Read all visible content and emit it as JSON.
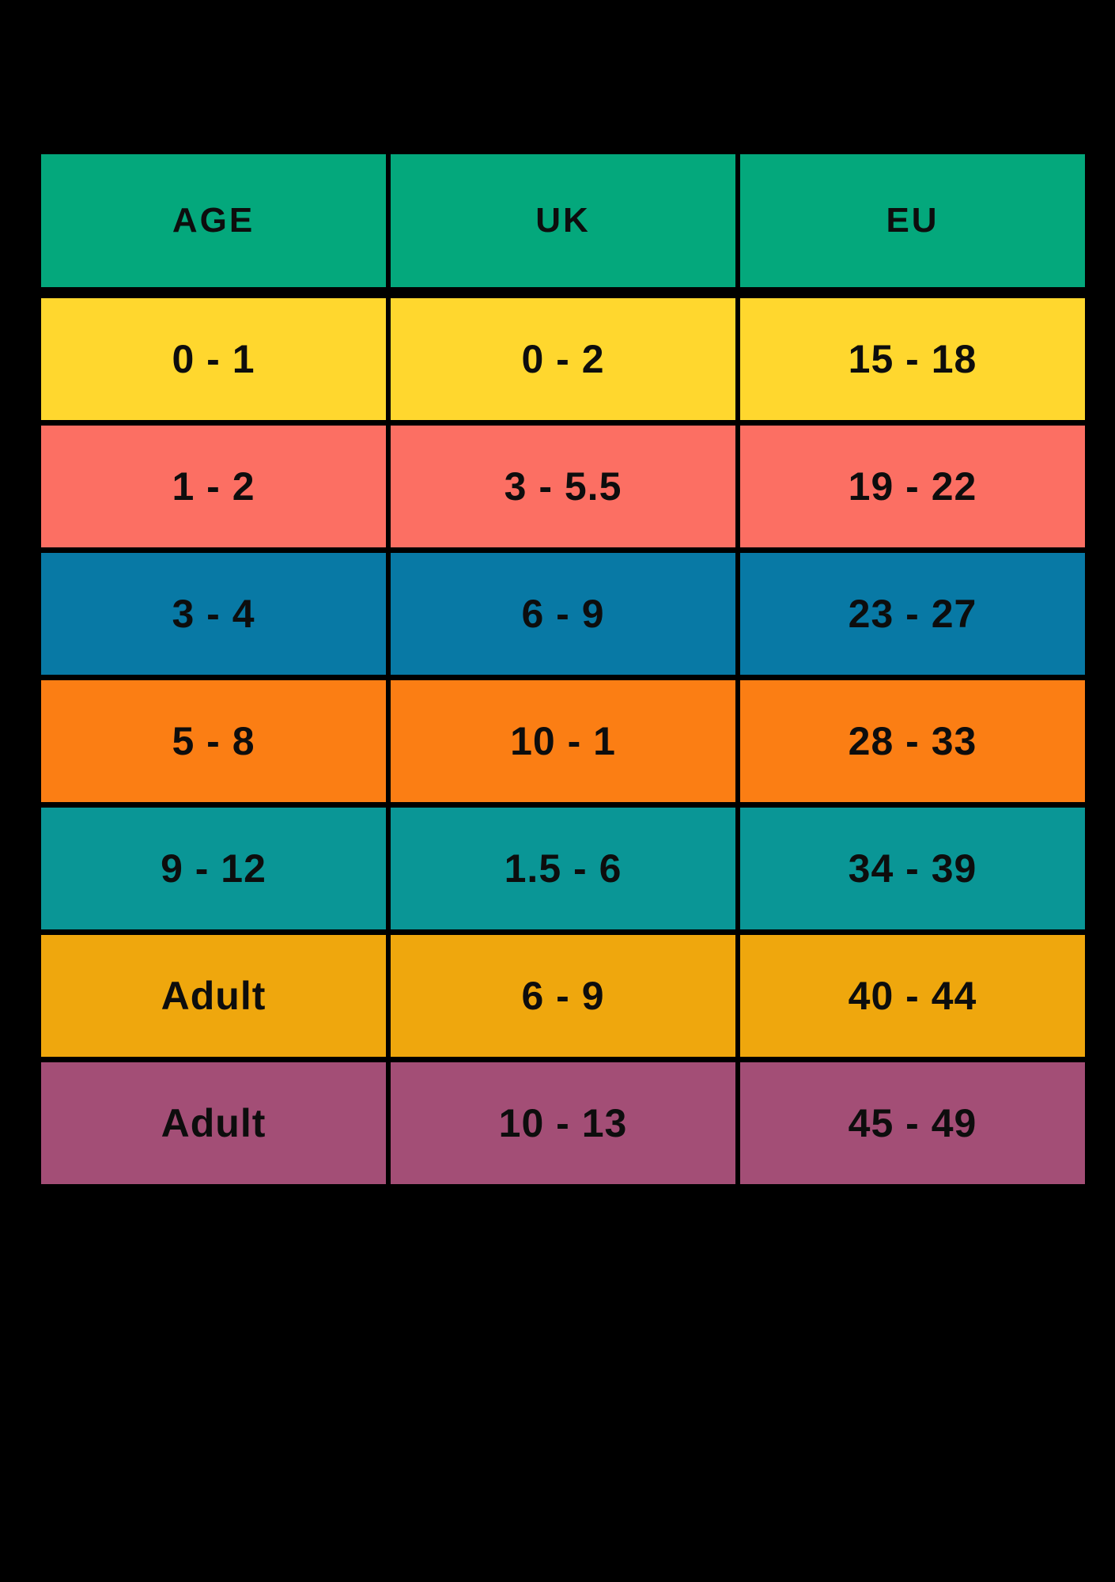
{
  "chart_data": {
    "type": "table",
    "columns": [
      "AGE",
      "UK",
      "EU"
    ],
    "rows": [
      [
        "0 - 1",
        "0 - 2",
        "15 - 18"
      ],
      [
        "1 - 2",
        "3 - 5.5",
        "19 - 22"
      ],
      [
        "3 - 4",
        "6 - 9",
        "23 - 27"
      ],
      [
        "5 - 8",
        "10 - 1",
        "28 - 33"
      ],
      [
        "9 - 12",
        "1.5 - 6",
        "34 - 39"
      ],
      [
        "Adult",
        "6 - 9",
        "40 - 44"
      ],
      [
        "Adult",
        "10 - 13",
        "45 - 49"
      ]
    ],
    "header_color": "#04A87C",
    "row_colors": [
      "#FFD72E",
      "#FC6F63",
      "#0879A5",
      "#FB7E14",
      "#0A9696",
      "#EFA70D",
      "#A34E76"
    ],
    "background_color": "#000000",
    "text_color": "#0d0d0d"
  }
}
